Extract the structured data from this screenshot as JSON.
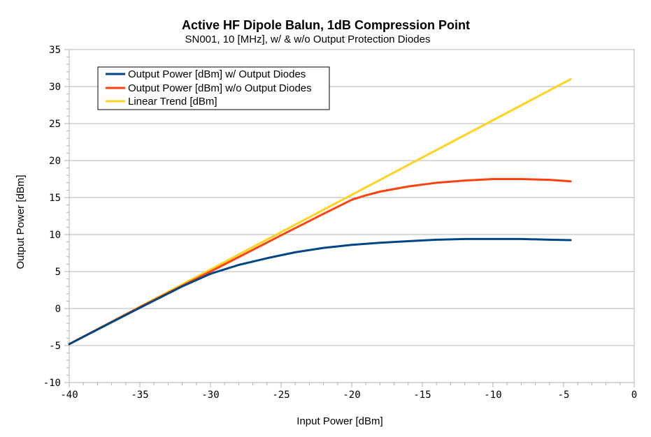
{
  "chart_data": {
    "type": "line",
    "title": "Active HF Dipole Balun, 1dB Compression Point",
    "subtitle": "SN001, 10 [MHz], w/ & w/o Output Protection Diodes",
    "xlabel": "Input Power [dBm]",
    "ylabel": "Output Power [dBm]",
    "xlim": [
      -40,
      0
    ],
    "ylim": [
      -10,
      35
    ],
    "xticks": [
      -40,
      -35,
      -30,
      -25,
      -20,
      -15,
      -10,
      -5,
      0
    ],
    "yticks": [
      -10,
      -5,
      0,
      5,
      10,
      15,
      20,
      25,
      30,
      35
    ],
    "grid": "horizontal",
    "legend_position": "top-left",
    "series": [
      {
        "name": "Output Power [dBm] w/ Output Diodes",
        "color": "#004586",
        "x": [
          -40,
          -35,
          -32,
          -30,
          -28,
          -26,
          -24,
          -22,
          -20,
          -18,
          -16,
          -14,
          -12,
          -10,
          -8,
          -6,
          -4.5
        ],
        "y": [
          -4.8,
          0.1,
          3.0,
          4.7,
          5.9,
          6.8,
          7.6,
          8.2,
          8.6,
          8.9,
          9.1,
          9.3,
          9.4,
          9.4,
          9.4,
          9.3,
          9.25
        ]
      },
      {
        "name": "Output Power [dBm] w/o Output Diodes",
        "color": "#ff420e",
        "x": [
          -40,
          -35,
          -30,
          -25,
          -22,
          -20,
          -19,
          -18,
          -16,
          -14,
          -12,
          -10,
          -8,
          -6,
          -4.5
        ],
        "y": [
          -4.8,
          0.2,
          5.0,
          9.9,
          12.8,
          14.7,
          15.3,
          15.8,
          16.5,
          17.0,
          17.3,
          17.5,
          17.5,
          17.4,
          17.2
        ]
      },
      {
        "name": "Linear Trend [dBm]",
        "color": "#ffd320",
        "x": [
          -40,
          -4.5
        ],
        "y": [
          -4.8,
          31.0
        ]
      }
    ]
  }
}
